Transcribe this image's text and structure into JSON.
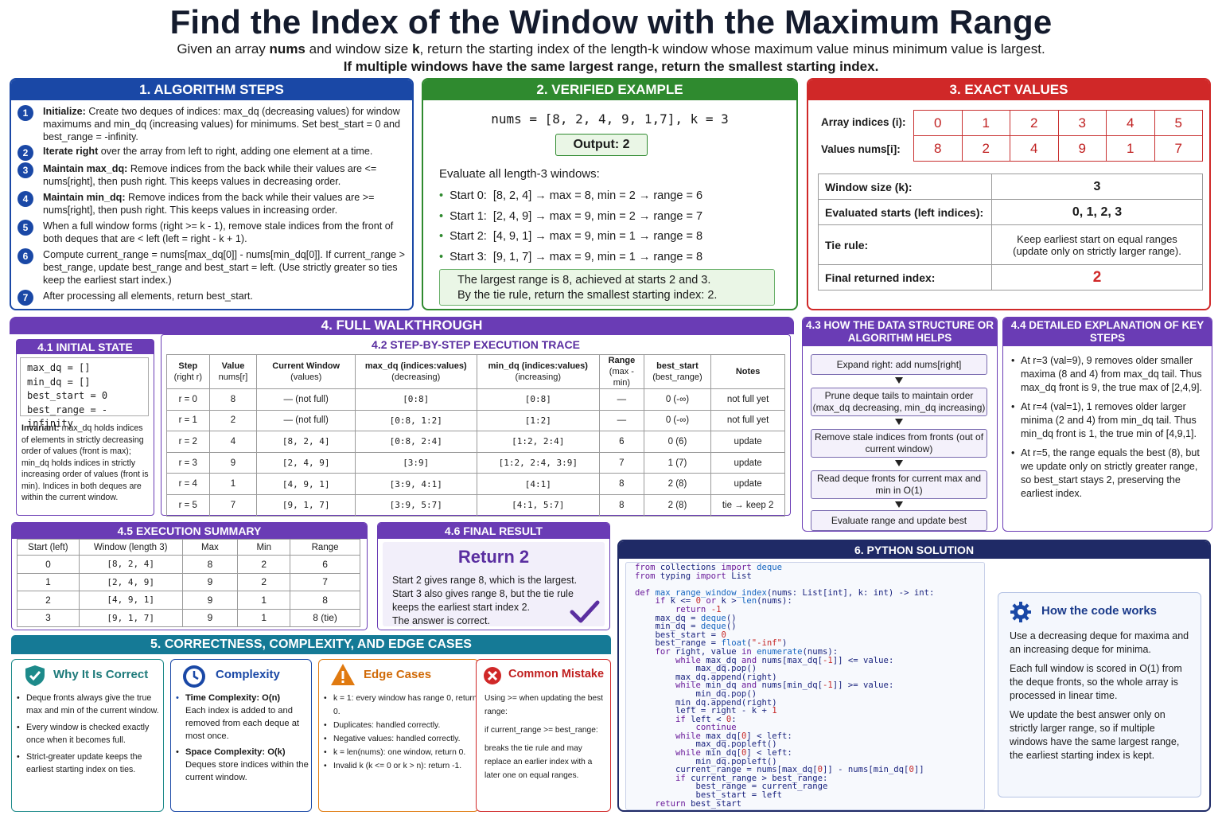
{
  "title": "Find the Index of the Window with the Maximum Range",
  "subtitle_parts": [
    "Given an array ",
    "nums",
    " and window size ",
    "k",
    ", return the starting index of the length-k window whose maximum value minus minimum value is largest."
  ],
  "subtitle2": "If multiple windows have the same largest range, return the smallest starting index.",
  "s1": {
    "header": "1. ALGORITHM STEPS",
    "steps": [
      {
        "n": "1",
        "b": "Initialize:",
        "t": " Create two deques of indices: max_dq (decreasing values) for window maximums and min_dq (increasing values) for minimums. Set best_start = 0 and best_range = -infinity."
      },
      {
        "n": "2",
        "b": "Iterate right",
        "t": " over the array from left to right, adding one element at a time."
      },
      {
        "n": "3",
        "b": "Maintain max_dq:",
        "t": " Remove indices from the back while their values are <= nums[right], then push right. This keeps values in decreasing order."
      },
      {
        "n": "4",
        "b": "Maintain min_dq:",
        "t": " Remove indices from the back while their values are >= nums[right], then push right. This keeps values in increasing order."
      },
      {
        "n": "5",
        "b": "",
        "t": "When a full window forms (right >= k - 1), remove stale indices from the front of both deques that are < left (left = right - k + 1)."
      },
      {
        "n": "6",
        "b": "",
        "t": "Compute current_range = nums[max_dq[0]] - nums[min_dq[0]]. If current_range > best_range, update best_range and best_start = left. (Use strictly greater so ties keep the earliest start index.)"
      },
      {
        "n": "7",
        "b": "",
        "t": "After processing all elements, return best_start."
      }
    ]
  },
  "s2": {
    "header": "2. VERIFIED EXAMPLE",
    "input": "nums = [8, 2, 4, 9, 1,7], k = 3",
    "output_label": "Output:",
    "output_value": "2",
    "eval_label": "Evaluate all length-3 windows:",
    "windows": [
      "Start 0:  [8, 2, 4] → max = 8, min = 2 → range = 6",
      "Start 1:  [2, 4, 9] → max = 9, min = 2 → range = 7",
      "Start 2:  [4, 9, 1] → max = 9, min = 1 → range = 8",
      "Start 3:  [9, 1, 7] → max = 9, min = 1 → range = 8"
    ],
    "conclusion1": "The largest range is 8, achieved at starts 2 and 3.",
    "conclusion2": "By the tie rule, return the smallest starting index: 2."
  },
  "s3": {
    "header": "3. EXACT VALUES",
    "idx_label": "Array indices (i):",
    "val_label": "Values nums[i]:",
    "indices": [
      "0",
      "1",
      "2",
      "3",
      "4",
      "5"
    ],
    "values": [
      "8",
      "2",
      "4",
      "9",
      "1",
      "7"
    ],
    "rows": [
      {
        "k": "Window size (k):",
        "v": "3"
      },
      {
        "k": "Evaluated starts (left indices):",
        "v": "0, 1, 2, 3"
      },
      {
        "k": "Tie rule:",
        "v": "Keep earliest start on equal ranges (update only on strictly larger range)."
      },
      {
        "k": "Final returned index:",
        "v": "2"
      }
    ]
  },
  "s4": {
    "header": "4. FULL WALKTHROUGH",
    "init_header": "4.1 INITIAL STATE",
    "init_lines": [
      "max_dq = []",
      "min_dq = []",
      "best_start = 0",
      "best_range = -infinity"
    ],
    "invariant_b": "Invariant:",
    "invariant": " max_dq holds indices of elements in strictly decreasing order of values (front is max); min_dq holds indices in strictly increasing order of values (front is min). Indices in both deques are within the current window.",
    "trace_header": "4.2 STEP-BY-STEP EXECUTION TRACE",
    "trace_cols": [
      [
        "Step",
        "(right r)"
      ],
      [
        "Value",
        "nums[r]"
      ],
      [
        "Current Window",
        "(values)"
      ],
      [
        "max_dq (indices:values)",
        "(decreasing)"
      ],
      [
        "min_dq (indices:values)",
        "(increasing)"
      ],
      [
        "Range",
        "(max - min)"
      ],
      [
        "best_start",
        "(best_range)"
      ],
      [
        "Notes",
        ""
      ]
    ],
    "trace_rows": [
      [
        "r = 0",
        "8",
        "— (not full)",
        "[0:8]",
        "[0:8]",
        "—",
        "0 (-∞)",
        "not full yet"
      ],
      [
        "r = 1",
        "2",
        "— (not full)",
        "[0:8, 1:2]",
        "[1:2]",
        "—",
        "0 (-∞)",
        "not full yet"
      ],
      [
        "r = 2",
        "4",
        "[8, 2, 4]",
        "[0:8, 2:4]",
        "[1:2, 2:4]",
        "6",
        "0 (6)",
        "update"
      ],
      [
        "r = 3",
        "9",
        "[2, 4, 9]",
        "[3:9]",
        "[1:2, 2:4, 3:9]",
        "7",
        "1 (7)",
        "update"
      ],
      [
        "r = 4",
        "1",
        "[4, 9, 1]",
        "[3:9, 4:1]",
        "[4:1]",
        "8",
        "2 (8)",
        "update"
      ],
      [
        "r = 5",
        "7",
        "[9, 1, 7]",
        "[3:9, 5:7]",
        "[4:1, 5:7]",
        "8",
        "2 (8)",
        "tie → keep 2"
      ]
    ]
  },
  "s43": {
    "header": "4.3 HOW THE DATA STRUCTURE OR ALGORITHM HELPS",
    "boxes": [
      "Expand right: add nums[right]",
      "Prune deque tails to maintain order (max_dq decreasing, min_dq increasing)",
      "Remove stale indices from fronts (out of current window)",
      "Read deque fronts for current max and min in O(1)",
      "Evaluate range and update best"
    ]
  },
  "s44": {
    "header": "4.4 DETAILED EXPLANATION OF KEY STEPS",
    "items": [
      "At r=3 (val=9), 9 removes older smaller maxima (8 and 4) from max_dq tail. Thus max_dq front is 9, the true max of [2,4,9].",
      "At r=4 (val=1), 1 removes older larger minima (2 and 4) from min_dq tail. Thus min_dq front is 1, the true min of [4,9,1].",
      "At r=5, the range equals the best (8), but we update only on strictly greater range, so best_start stays 2, preserving the earliest index."
    ]
  },
  "s45": {
    "header": "4.5 EXECUTION SUMMARY",
    "cols": [
      "Start (left)",
      "Window (length 3)",
      "Max",
      "Min",
      "Range"
    ],
    "rows": [
      [
        "0",
        "[8, 2, 4]",
        "8",
        "2",
        "6"
      ],
      [
        "1",
        "[2, 4, 9]",
        "9",
        "2",
        "7"
      ],
      [
        "2",
        "[4, 9, 1]",
        "9",
        "1",
        "8"
      ],
      [
        "3",
        "[9, 1, 7]",
        "9",
        "1",
        "8 (tie)"
      ]
    ]
  },
  "s46": {
    "header": "4.6 FINAL RESULT",
    "result": "Return 2",
    "lines": [
      "Start 2 gives range 8, which is the largest.",
      "Start 3 also gives range 8, but the tie rule",
      "keeps the earliest start index 2.",
      "The answer is correct."
    ]
  },
  "s5": {
    "header": "5. CORRECTNESS, COMPLEXITY, AND EDGE CASES",
    "correct": {
      "title": "Why It Is Correct",
      "items": [
        "Deque fronts always give the true max and min of the current window.",
        "Every window is checked exactly once when it becomes full.",
        "Strict-greater update keeps the earliest starting index on ties."
      ]
    },
    "complexity": {
      "title": "Complexity",
      "time_b": "Time Complexity: O(n)",
      "time": "Each index is added to and removed from each deque at most once.",
      "space_b": "Space Complexity: O(k)",
      "space": "Deques store indices within the current window."
    },
    "edge": {
      "title": "Edge Cases",
      "items": [
        "k = 1: every window has range 0, return 0.",
        "Duplicates: handled correctly.",
        "Negative values: handled correctly.",
        "k = len(nums): one window, return 0.",
        "Invalid k (k <= 0 or k > n): return -1."
      ]
    },
    "mistake": {
      "title": "Common Mistake",
      "lines": [
        "Using >= when updating the best range:",
        "if current_range >= best_range:",
        "breaks the tie rule and may replace an earlier index with a later one on equal ranges."
      ]
    }
  },
  "s6": {
    "header": "6. PYTHON SOLUTION",
    "code": [
      "from collections import deque",
      "from typing import List",
      "",
      "def max_range_window_index(nums: List[int], k: int) -> int:",
      "    if k <= 0 or k > len(nums):",
      "        return -1",
      "    max_dq = deque()",
      "    min_dq = deque()",
      "    best_start = 0",
      "    best_range = float(\"-inf\")",
      "    for right, value in enumerate(nums):",
      "        while max_dq and nums[max_dq[-1]] <= value:",
      "            max_dq.pop()",
      "        max_dq.append(right)",
      "        while min_dq and nums[min_dq[-1]] >= value:",
      "            min_dq.pop()",
      "        min_dq.append(right)",
      "        left = right - k + 1",
      "        if left < 0:",
      "            continue",
      "        while max_dq[0] < left:",
      "            max_dq.popleft()",
      "        while min_dq[0] < left:",
      "            min_dq.popleft()",
      "        current_range = nums[max_dq[0]] - nums[min_dq[0]]",
      "        if current_range > best_range:",
      "            best_range = current_range",
      "            best_start = left",
      "    return best_start"
    ],
    "how_title": "How the code works",
    "how": [
      "Use a decreasing deque for maxima and an increasing deque for minima.",
      "Each full window is scored in O(1) from the deque fronts, so the whole array is processed in linear time.",
      "We update the best answer only on strictly larger range, so if multiple windows have the same largest range, the earliest starting index is kept."
    ]
  },
  "colors": {
    "blue": "#1a48a6",
    "green": "#2f8a2f",
    "red": "#d02828",
    "purple": "#6a3cb5",
    "teal": "#157a96",
    "navy": "#1f2a66"
  }
}
